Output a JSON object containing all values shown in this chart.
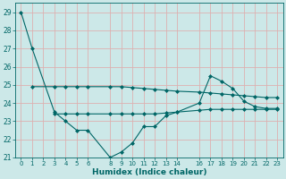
{
  "xlabel": "Humidex (Indice chaleur)",
  "bg_color": "#cce8e8",
  "grid_color": "#ddb0b0",
  "line_color": "#006666",
  "ylim": [
    21,
    29.5
  ],
  "xlim": [
    -0.5,
    23.5
  ],
  "yticks": [
    21,
    22,
    23,
    24,
    25,
    26,
    27,
    28,
    29
  ],
  "xticks": [
    0,
    1,
    2,
    3,
    4,
    5,
    6,
    8,
    9,
    10,
    11,
    12,
    13,
    14,
    16,
    17,
    18,
    19,
    20,
    21,
    22,
    23
  ],
  "line1_x": [
    0,
    1,
    3,
    4,
    5,
    6,
    8,
    9,
    10,
    11,
    12,
    13,
    14,
    16,
    17,
    18,
    19,
    20,
    21,
    22,
    23
  ],
  "line1_y": [
    29.0,
    27.0,
    23.5,
    23.0,
    22.5,
    22.5,
    21.0,
    21.3,
    21.8,
    22.7,
    22.7,
    23.3,
    23.5,
    24.0,
    25.5,
    25.2,
    24.8,
    24.1,
    23.8,
    23.7,
    23.7
  ],
  "line2_x": [
    1,
    3,
    4,
    5,
    6,
    8,
    9,
    10,
    11,
    12,
    13,
    14,
    16,
    17,
    18,
    19,
    20,
    21,
    22,
    23
  ],
  "line2_y": [
    24.9,
    24.9,
    24.9,
    24.9,
    24.9,
    24.9,
    24.9,
    24.85,
    24.8,
    24.75,
    24.7,
    24.65,
    24.6,
    24.55,
    24.5,
    24.45,
    24.4,
    24.35,
    24.3,
    24.3
  ],
  "line3_x": [
    3,
    4,
    5,
    6,
    8,
    9,
    10,
    11,
    12,
    13,
    14,
    16,
    17,
    18,
    19,
    20,
    21,
    22,
    23
  ],
  "line3_y": [
    23.4,
    23.4,
    23.4,
    23.4,
    23.4,
    23.4,
    23.4,
    23.4,
    23.4,
    23.45,
    23.5,
    23.6,
    23.65,
    23.65,
    23.65,
    23.65,
    23.65,
    23.65,
    23.65
  ]
}
